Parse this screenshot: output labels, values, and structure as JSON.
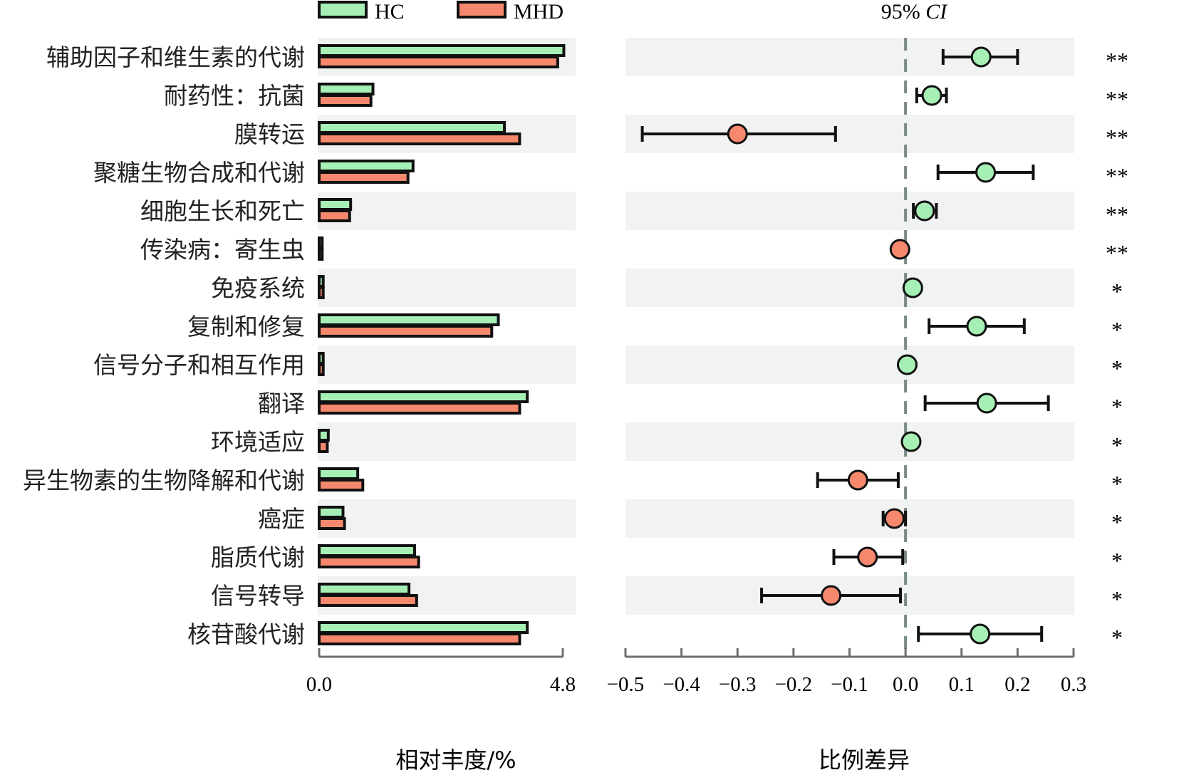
{
  "chart_data": [
    {
      "type": "bar",
      "subtype": "grouped-horizontal",
      "legend": {
        "position": "top",
        "entries": [
          {
            "name": "HC",
            "color": "#a6f0b5"
          },
          {
            "name": "MHD",
            "color": "#f6886d"
          }
        ]
      },
      "categories": [
        "辅助因子和维生素的代谢",
        "耐药性：抗菌",
        "膜转运",
        "聚糖生物合成和代谢",
        "细胞生长和死亡",
        "传染病：寄生虫",
        "免疫系统",
        "复制和修复",
        "信号分子和相互作用",
        "翻译",
        "环境适应",
        "异生物素的生物降解和代谢",
        "癌症",
        "脂质代谢",
        "信号转导",
        "核苷酸代谢"
      ],
      "series": [
        {
          "name": "HC",
          "color": "#a6f0b5",
          "values": [
            4.82,
            1.06,
            3.65,
            1.85,
            0.62,
            0.06,
            0.08,
            3.53,
            0.08,
            4.1,
            0.18,
            0.76,
            0.47,
            1.88,
            1.77,
            4.1
          ]
        },
        {
          "name": "MHD",
          "color": "#f6886d",
          "values": [
            4.7,
            1.02,
            3.95,
            1.75,
            0.6,
            0.06,
            0.08,
            3.4,
            0.08,
            3.95,
            0.16,
            0.86,
            0.5,
            1.96,
            1.92,
            3.95
          ]
        }
      ],
      "xlim": [
        0,
        4.8
      ],
      "xticks": [
        "0.0",
        "4.8"
      ],
      "xlabel": "相对丰度/%"
    },
    {
      "type": "scatter",
      "subtype": "errorbar-ci",
      "title": "95% CI",
      "xlabel": "比例差异",
      "xlim": [
        -0.5,
        0.3
      ],
      "xticks": [
        "−0.5",
        "−0.4",
        "−0.3",
        "−0.2",
        "−0.1",
        "0.0",
        "0.1",
        "0.2",
        "0.3"
      ],
      "points": [
        {
          "diff": 0.135,
          "low": 0.067,
          "high": 0.2,
          "group": "HC",
          "sig": "**"
        },
        {
          "diff": 0.047,
          "low": 0.02,
          "high": 0.073,
          "group": "HC",
          "sig": "**"
        },
        {
          "diff": -0.3,
          "low": -0.47,
          "high": -0.125,
          "group": "MHD",
          "sig": "**"
        },
        {
          "diff": 0.143,
          "low": 0.058,
          "high": 0.228,
          "group": "HC",
          "sig": "**"
        },
        {
          "diff": 0.034,
          "low": 0.014,
          "high": 0.055,
          "group": "HC",
          "sig": "**"
        },
        {
          "diff": -0.01,
          "low": -0.01,
          "high": -0.01,
          "group": "MHD",
          "sig": "**"
        },
        {
          "diff": 0.013,
          "low": 0.013,
          "high": 0.013,
          "group": "HC",
          "sig": "*"
        },
        {
          "diff": 0.127,
          "low": 0.042,
          "high": 0.212,
          "group": "HC",
          "sig": "*"
        },
        {
          "diff": 0.003,
          "low": 0.003,
          "high": 0.003,
          "group": "HC",
          "sig": "*"
        },
        {
          "diff": 0.145,
          "low": 0.035,
          "high": 0.255,
          "group": "HC",
          "sig": "*"
        },
        {
          "diff": 0.01,
          "low": 0.01,
          "high": 0.01,
          "group": "HC",
          "sig": "*"
        },
        {
          "diff": -0.085,
          "low": -0.157,
          "high": -0.013,
          "group": "MHD",
          "sig": "*"
        },
        {
          "diff": -0.02,
          "low": -0.04,
          "high": 0.0,
          "group": "MHD",
          "sig": "*"
        },
        {
          "diff": -0.068,
          "low": -0.128,
          "high": -0.005,
          "group": "MHD",
          "sig": "*"
        },
        {
          "diff": -0.133,
          "low": -0.257,
          "high": -0.009,
          "group": "MHD",
          "sig": "*"
        },
        {
          "diff": 0.133,
          "low": 0.023,
          "high": 0.243,
          "group": "HC",
          "sig": "*"
        }
      ]
    }
  ]
}
